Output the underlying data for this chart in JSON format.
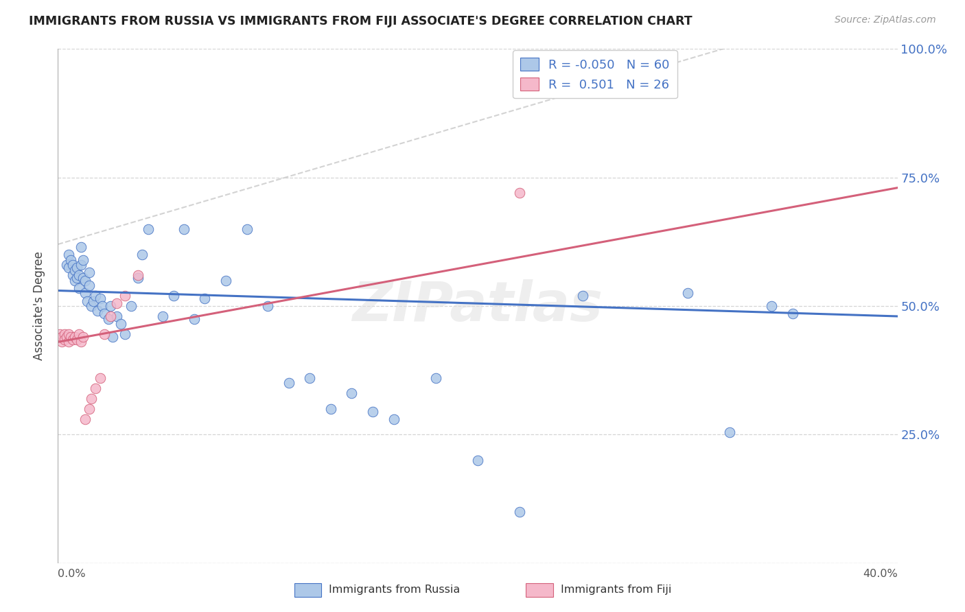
{
  "title": "IMMIGRANTS FROM RUSSIA VS IMMIGRANTS FROM FIJI ASSOCIATE'S DEGREE CORRELATION CHART",
  "source": "Source: ZipAtlas.com",
  "ylabel": "Associate's Degree",
  "xlim": [
    0.0,
    0.4
  ],
  "ylim": [
    0.0,
    1.0
  ],
  "russia_R": -0.05,
  "russia_N": 60,
  "fiji_R": 0.501,
  "fiji_N": 26,
  "russia_color": "#adc8e8",
  "fiji_color": "#f5b8ca",
  "russia_line_color": "#4472c4",
  "fiji_line_color": "#d4607a",
  "ref_line_color": "#c8c8c8",
  "grid_color": "#d5d5d5",
  "background_color": "#ffffff",
  "legend_russia": "Immigrants from Russia",
  "legend_fiji": "Immigrants from Fiji",
  "y_ticks": [
    0.0,
    0.25,
    0.5,
    0.75,
    1.0
  ],
  "y_tick_labels": [
    "",
    "25.0%",
    "50.0%",
    "75.0%",
    "100.0%"
  ],
  "russia_x": [
    0.004,
    0.005,
    0.005,
    0.006,
    0.007,
    0.007,
    0.008,
    0.008,
    0.009,
    0.009,
    0.01,
    0.01,
    0.011,
    0.011,
    0.012,
    0.012,
    0.013,
    0.013,
    0.014,
    0.015,
    0.015,
    0.016,
    0.017,
    0.018,
    0.019,
    0.02,
    0.021,
    0.022,
    0.024,
    0.025,
    0.026,
    0.028,
    0.03,
    0.032,
    0.035,
    0.038,
    0.04,
    0.043,
    0.05,
    0.055,
    0.06,
    0.065,
    0.07,
    0.08,
    0.09,
    0.1,
    0.11,
    0.12,
    0.13,
    0.14,
    0.15,
    0.16,
    0.18,
    0.2,
    0.22,
    0.25,
    0.3,
    0.32,
    0.34,
    0.35
  ],
  "russia_y": [
    0.58,
    0.6,
    0.575,
    0.59,
    0.56,
    0.58,
    0.55,
    0.57,
    0.555,
    0.575,
    0.535,
    0.56,
    0.58,
    0.615,
    0.555,
    0.59,
    0.525,
    0.55,
    0.51,
    0.54,
    0.565,
    0.5,
    0.51,
    0.52,
    0.49,
    0.515,
    0.5,
    0.485,
    0.475,
    0.5,
    0.44,
    0.48,
    0.465,
    0.445,
    0.5,
    0.555,
    0.6,
    0.65,
    0.48,
    0.52,
    0.65,
    0.475,
    0.515,
    0.55,
    0.65,
    0.5,
    0.35,
    0.36,
    0.3,
    0.33,
    0.295,
    0.28,
    0.36,
    0.2,
    0.1,
    0.52,
    0.525,
    0.255,
    0.5,
    0.485
  ],
  "fiji_x": [
    0.001,
    0.002,
    0.002,
    0.003,
    0.003,
    0.004,
    0.005,
    0.005,
    0.006,
    0.007,
    0.008,
    0.009,
    0.01,
    0.011,
    0.012,
    0.013,
    0.015,
    0.016,
    0.018,
    0.02,
    0.022,
    0.025,
    0.028,
    0.032,
    0.038,
    0.22
  ],
  "fiji_y": [
    0.445,
    0.43,
    0.44,
    0.445,
    0.435,
    0.44,
    0.43,
    0.445,
    0.44,
    0.435,
    0.44,
    0.435,
    0.445,
    0.43,
    0.44,
    0.28,
    0.3,
    0.32,
    0.34,
    0.36,
    0.445,
    0.48,
    0.505,
    0.52,
    0.56,
    0.72
  ],
  "russia_trend_x": [
    0.0,
    0.4
  ],
  "russia_trend_y": [
    0.53,
    0.48
  ],
  "fiji_trend_x": [
    0.0,
    0.4
  ],
  "fiji_trend_y": [
    0.43,
    0.73
  ],
  "ref_line_x": [
    0.0,
    0.4
  ],
  "ref_line_y": [
    0.62,
    1.1
  ]
}
